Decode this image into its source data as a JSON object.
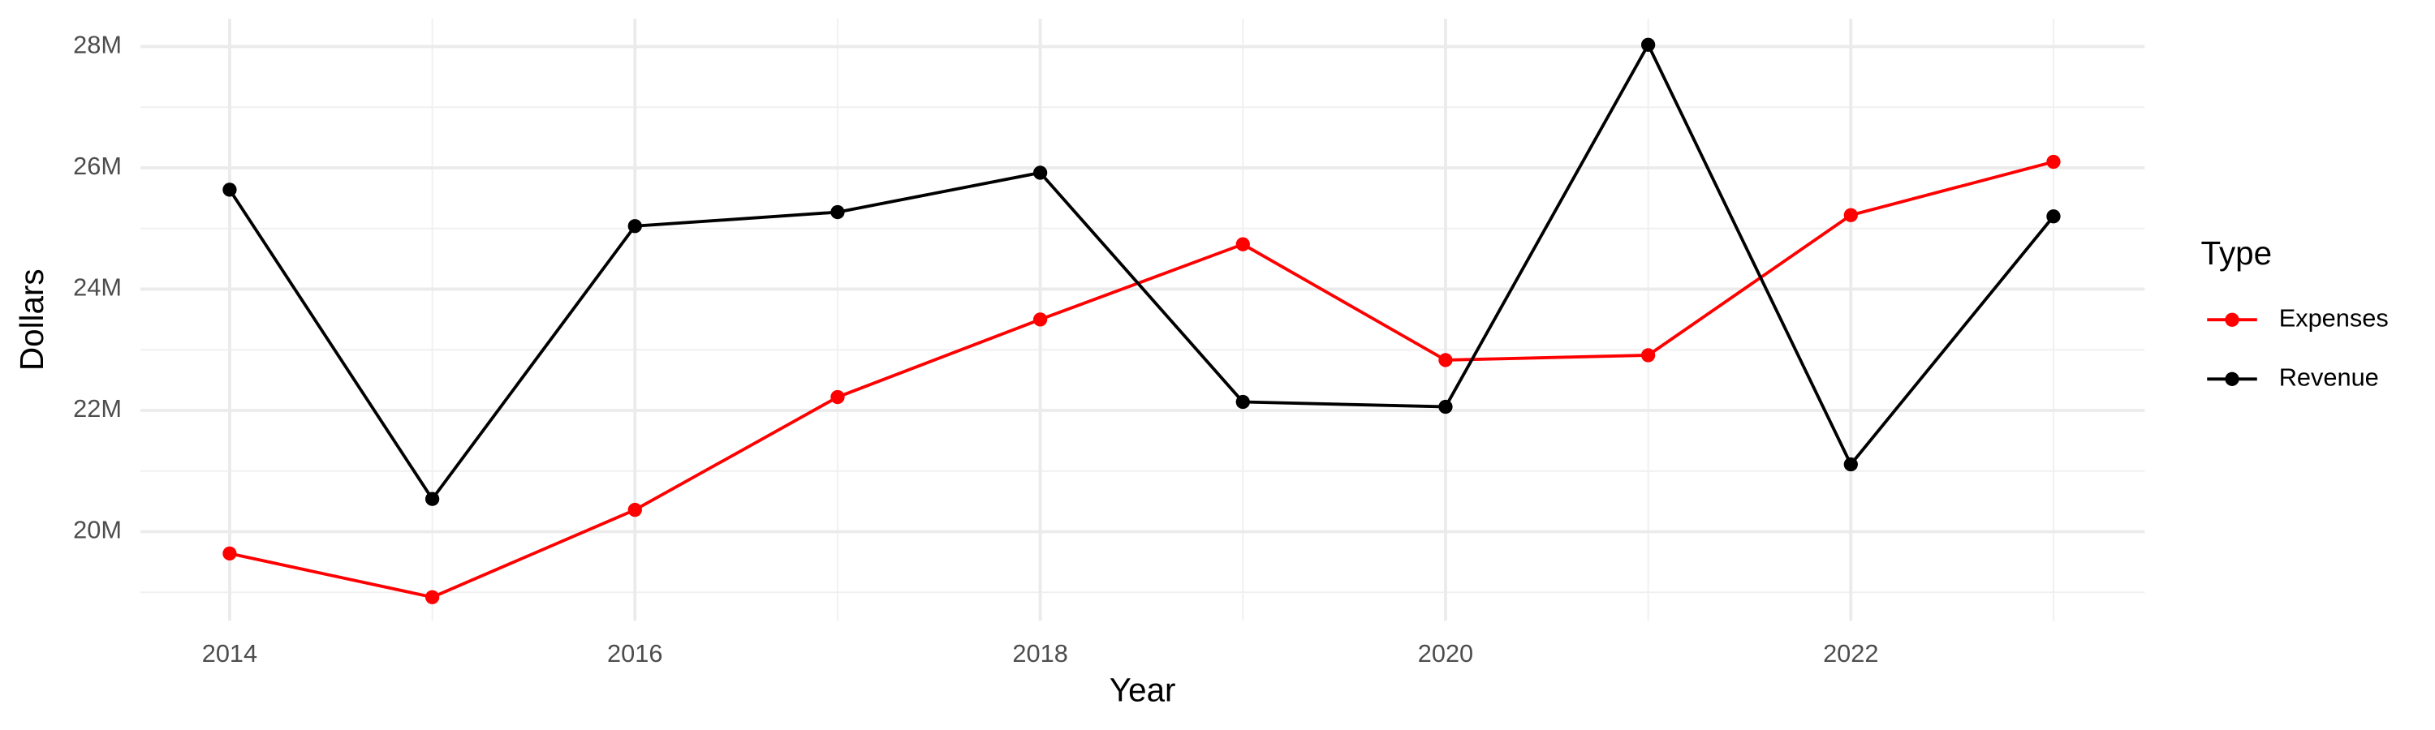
{
  "chart_data": {
    "type": "line",
    "x_label": "Year",
    "y_label": "Dollars",
    "legend_title": "Type",
    "legend_position": "right",
    "x": [
      2014,
      2015,
      2016,
      2017,
      2018,
      2019,
      2020,
      2021,
      2022,
      2023
    ],
    "series": [
      {
        "name": "Expenses",
        "color": "#ff0000",
        "values": [
          19640000,
          18920000,
          20360000,
          22220000,
          23500000,
          24740000,
          22830000,
          22910000,
          25220000,
          26100000
        ]
      },
      {
        "name": "Revenue",
        "color": "#000000",
        "values": [
          25640000,
          20540000,
          25040000,
          25270000,
          25920000,
          22140000,
          22060000,
          28030000,
          21110000,
          25200000
        ]
      }
    ],
    "xlim": [
      2013.56,
      2023.45
    ],
    "xticks": [
      2014,
      2016,
      2018,
      2020,
      2022
    ],
    "ylim": [
      18530000,
      28460000
    ],
    "yticks": [
      {
        "value": 20000000,
        "label": "20M"
      },
      {
        "value": 22000000,
        "label": "22M"
      },
      {
        "value": 24000000,
        "label": "24M"
      },
      {
        "value": 26000000,
        "label": "26M"
      },
      {
        "value": 28000000,
        "label": "28M"
      }
    ],
    "grid": true
  }
}
